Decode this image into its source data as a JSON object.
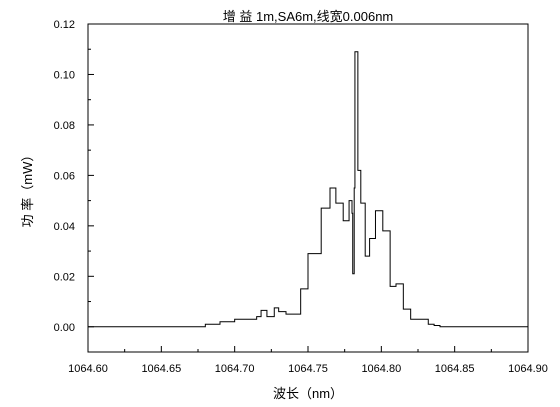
{
  "chart_data": {
    "type": "line",
    "title": "增 益   1m,SA6m,线宽0.006nm",
    "xlabel": "波长（nm）",
    "ylabel": "功 率（mW）",
    "xlim": [
      1064.6,
      1064.9
    ],
    "ylim": [
      -0.01,
      0.12
    ],
    "xticks": [
      1064.6,
      1064.65,
      1064.7,
      1064.75,
      1064.8,
      1064.85,
      1064.9
    ],
    "xtick_labels": [
      "1064.60",
      "1064.65",
      "1064.70",
      "1064.75",
      "1064.80",
      "1064.85",
      "1064.90"
    ],
    "yticks": [
      0.0,
      0.02,
      0.04,
      0.06,
      0.08,
      0.1,
      0.12
    ],
    "ytick_labels": [
      "0.00",
      "0.02",
      "0.04",
      "0.06",
      "0.08",
      "0.10",
      "0.12"
    ],
    "grid": false,
    "legend": "none",
    "line_color": "#000000",
    "series": [
      {
        "style": "step",
        "x": [
          1064.6,
          1064.68,
          1064.685,
          1064.69,
          1064.695,
          1064.7,
          1064.705,
          1064.71,
          1064.715,
          1064.718,
          1064.722,
          1064.727,
          1064.73,
          1064.735,
          1064.74,
          1064.745,
          1064.75,
          1064.755,
          1064.759,
          1064.765,
          1064.769,
          1064.774,
          1064.778,
          1064.78,
          1064.7805,
          1064.7815,
          1064.782,
          1064.784,
          1064.786,
          1064.789,
          1064.792,
          1064.796,
          1064.801,
          1064.806,
          1064.81,
          1064.815,
          1064.82,
          1064.824,
          1064.828,
          1064.832,
          1064.836,
          1064.84,
          1064.845,
          1064.9
        ],
        "y": [
          0.0,
          0.001,
          0.001,
          0.002,
          0.002,
          0.003,
          0.003,
          0.003,
          0.004,
          0.0065,
          0.004,
          0.0075,
          0.006,
          0.005,
          0.005,
          0.015,
          0.029,
          0.029,
          0.047,
          0.055,
          0.049,
          0.042,
          0.05,
          0.045,
          0.021,
          0.055,
          0.109,
          0.062,
          0.049,
          0.028,
          0.035,
          0.046,
          0.038,
          0.016,
          0.017,
          0.007,
          0.003,
          0.003,
          0.003,
          0.001,
          0.0005,
          0.0,
          0.0,
          0.0
        ]
      }
    ]
  }
}
